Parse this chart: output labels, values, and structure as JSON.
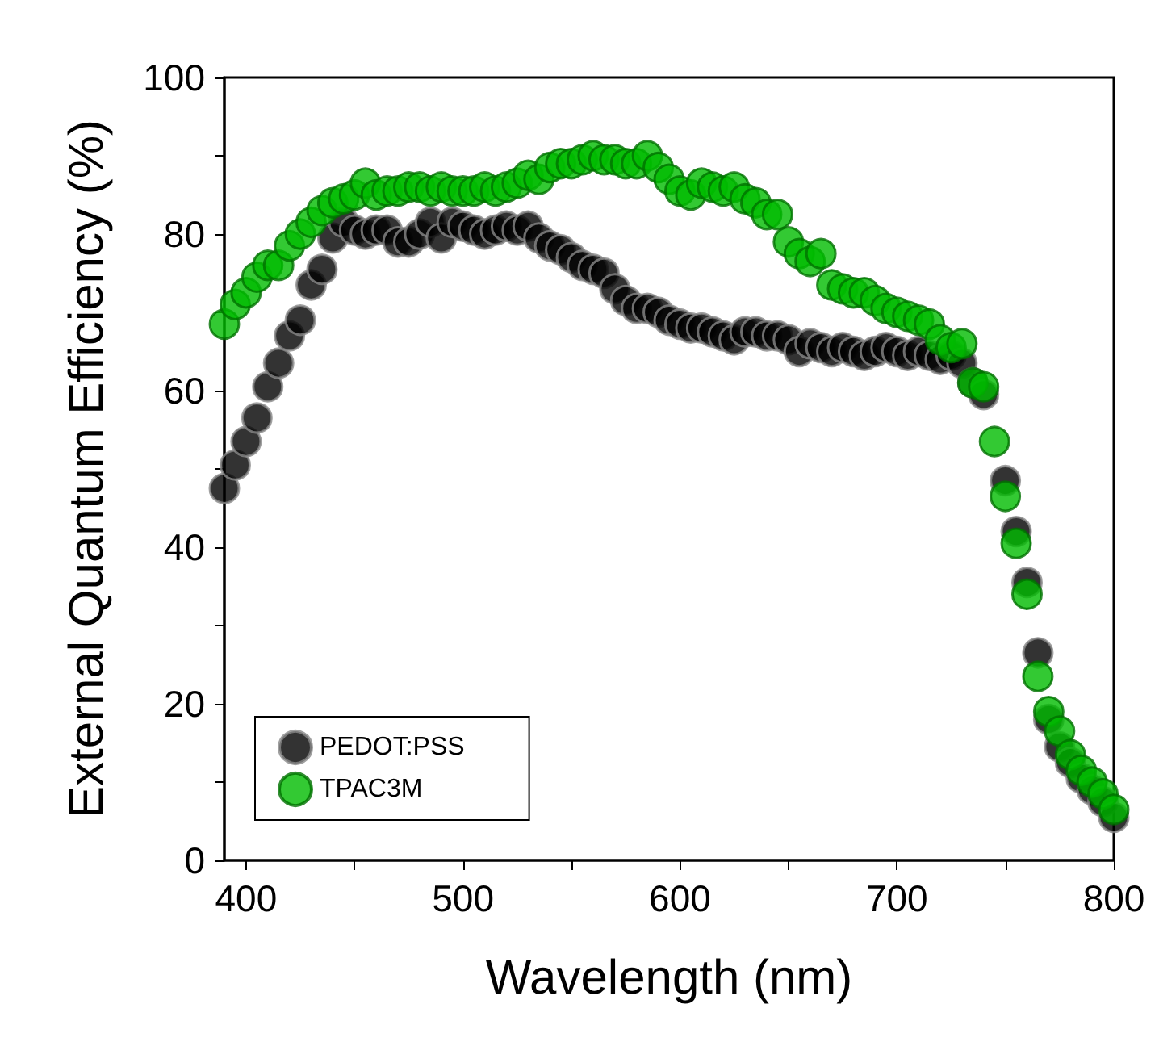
{
  "chart_data": {
    "type": "scatter",
    "xlabel": "Wavelength (nm)",
    "ylabel": "External Quantum Efficiency (%)",
    "xlim": [
      390,
      800
    ],
    "xticks": [
      400,
      {
        "value": 450,
        "label": null
      },
      500,
      {
        "value": 550,
        "label": null
      },
      600,
      {
        "value": 650,
        "label": null
      },
      700,
      {
        "value": 750,
        "label": null
      },
      800
    ],
    "ylim": [
      0,
      100
    ],
    "yticks": [
      0,
      {
        "value": 10,
        "label": null
      },
      20,
      {
        "value": 30,
        "label": null
      },
      40,
      {
        "value": 50,
        "label": null
      },
      60,
      {
        "value": 70,
        "label": null
      },
      80,
      {
        "value": 90,
        "label": null
      },
      100
    ],
    "x": [
      390,
      395,
      400,
      405,
      410,
      415,
      420,
      425,
      430,
      435,
      440,
      445,
      450,
      455,
      460,
      465,
      470,
      475,
      480,
      485,
      490,
      495,
      500,
      505,
      510,
      515,
      520,
      525,
      530,
      535,
      540,
      545,
      550,
      555,
      560,
      565,
      570,
      575,
      580,
      585,
      590,
      595,
      600,
      605,
      610,
      615,
      620,
      625,
      630,
      635,
      640,
      645,
      650,
      655,
      660,
      665,
      670,
      675,
      680,
      685,
      690,
      695,
      700,
      705,
      710,
      715,
      720,
      725,
      730,
      735,
      740,
      745,
      750,
      755,
      760,
      765,
      770,
      775,
      780,
      785,
      790,
      795,
      800
    ],
    "series": [
      {
        "name": "PEDOT:PSS",
        "color": "#000000",
        "values": [
          47.5,
          50.5,
          53.5,
          56.5,
          60.5,
          63.5,
          67,
          69,
          73.5,
          75.5,
          79.5,
          81.5,
          80.5,
          80,
          80.5,
          80.5,
          79,
          79,
          80,
          81.5,
          79.5,
          81.5,
          81,
          80.5,
          80,
          80.5,
          81,
          80.5,
          81,
          79.5,
          78.5,
          78,
          77,
          76,
          75.5,
          75,
          73,
          71.5,
          70.5,
          70.5,
          70,
          69,
          68.5,
          68,
          68,
          67.5,
          67,
          66.5,
          67.5,
          67.5,
          67,
          67,
          66.5,
          65,
          66,
          65.5,
          65,
          65.5,
          65,
          64.5,
          65,
          65.5,
          65,
          64.5,
          65,
          64.5,
          64,
          64.5,
          63.5,
          61,
          59.5,
          null,
          48.5,
          42,
          35.5,
          26.5,
          18,
          14.5,
          12.5,
          10.5,
          9,
          7.5,
          5.5
        ]
      },
      {
        "name": "TPAC3M",
        "color": "#00bb00",
        "values": [
          68.5,
          71,
          72.5,
          74.5,
          76,
          76,
          78.5,
          80,
          81.5,
          83,
          84,
          84.5,
          85,
          86.5,
          85,
          85.5,
          85.5,
          86,
          86,
          85.5,
          86,
          85.5,
          85.5,
          85.5,
          86,
          85.5,
          86,
          86.5,
          87.5,
          87,
          88.5,
          89,
          89,
          89.5,
          90,
          89.5,
          89.5,
          89,
          89,
          90,
          88.5,
          87,
          85.5,
          85,
          86.5,
          86,
          85.5,
          86,
          84.5,
          84,
          82.5,
          82.5,
          79,
          77.5,
          76.5,
          77.5,
          73.5,
          73,
          72.5,
          72.5,
          71.5,
          70.5,
          70,
          69.5,
          69,
          68.5,
          66.5,
          65.5,
          66,
          61,
          60.5,
          53.5,
          46.5,
          40.5,
          34,
          23.5,
          19,
          16.5,
          13.5,
          11.5,
          10,
          8.5,
          6.5
        ]
      }
    ],
    "marker": "circle",
    "grid": false,
    "legend": "bottom left"
  }
}
